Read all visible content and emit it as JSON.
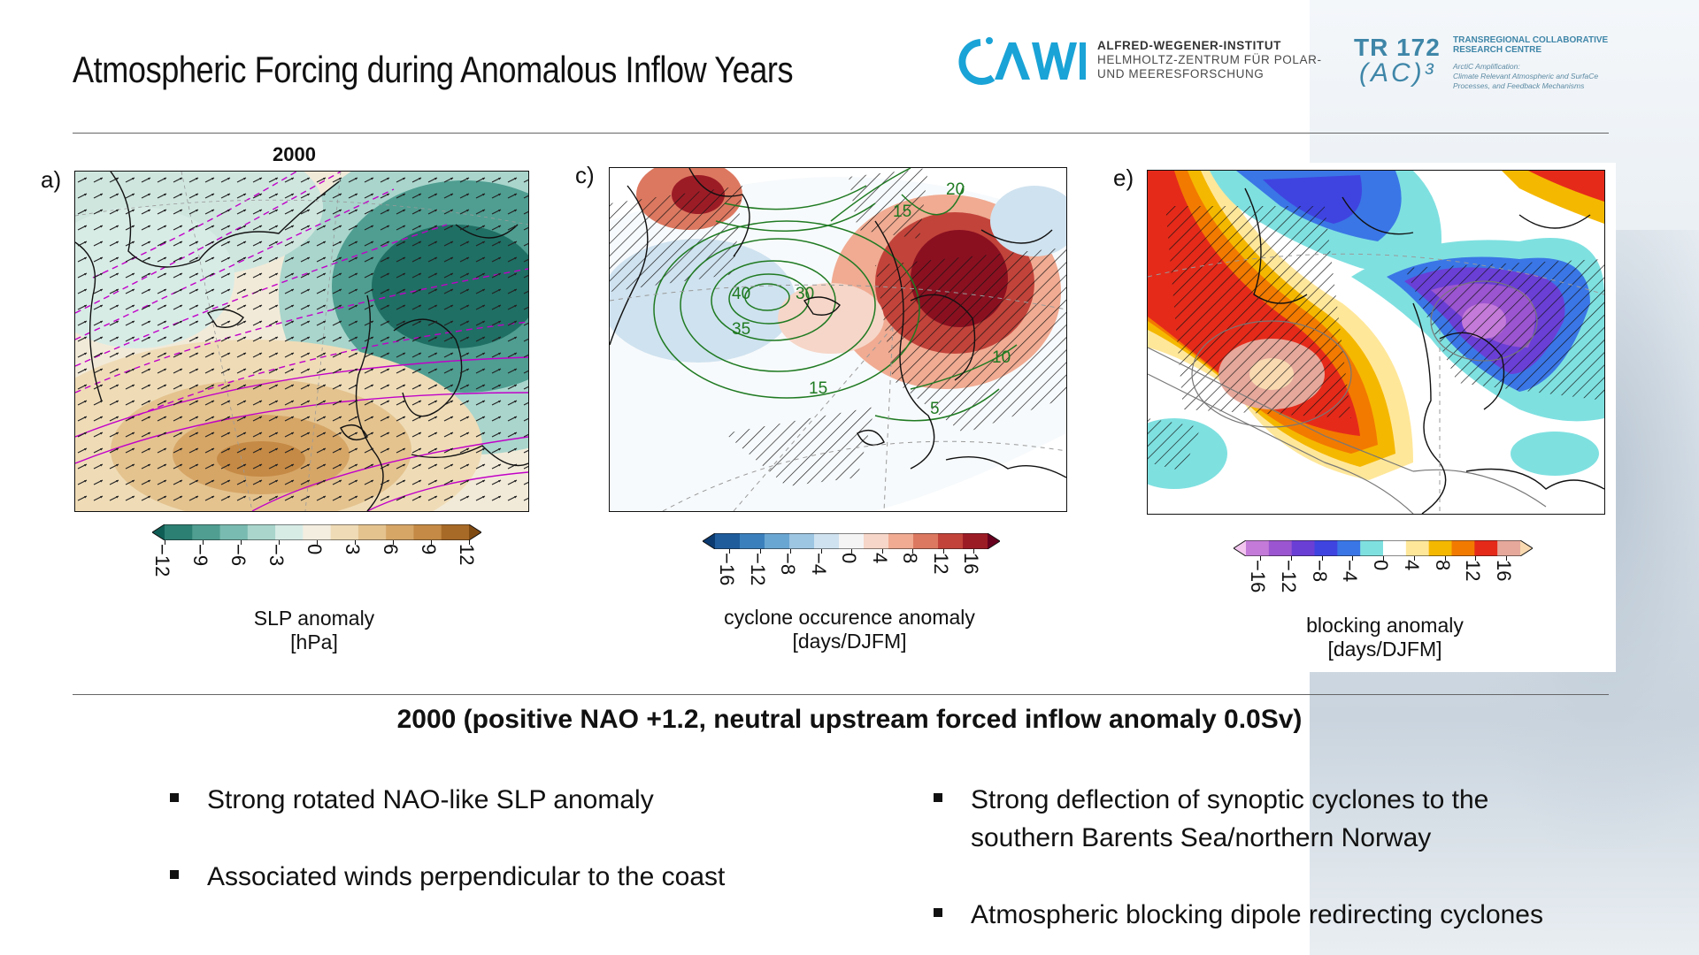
{
  "title": "Atmospheric Forcing during Anomalous Inflow Years",
  "logos": {
    "awi": {
      "mark": "AWI",
      "line1": "ALFRED-WEGENER-INSTITUT",
      "line2": "HELMHOLTZ-ZENTRUM FÜR POLAR-",
      "line3": "UND MEERESFORSCHUNG"
    },
    "tr172": {
      "mark": "TR 172",
      "ac": "(AC)³",
      "line1": "TRANSREGIONAL COLLABORATIVE",
      "line2": "RESEARCH CENTRE",
      "sub1": "ArctiC Amplification:",
      "sub2": "Climate Relevant Atmospheric and SurfaCe",
      "sub3": "Processes, and Feedback Mechanisms"
    }
  },
  "panels": {
    "a": {
      "label": "a)",
      "year": "2000",
      "colorbar": {
        "ticks": [
          "−12",
          "−9",
          "−6",
          "−3",
          "0",
          "3",
          "6",
          "9",
          "12"
        ],
        "label_line1": "SLP anomaly",
        "label_line2": "[hPa]",
        "colors": [
          "#0f5e55",
          "#2c7f73",
          "#4f9e91",
          "#79bbb0",
          "#a9d5cc",
          "#d8ece6",
          "#f4eee0",
          "#efdcb7",
          "#e4c38f",
          "#d6a667",
          "#c58a45",
          "#a86a27",
          "#7f4a12"
        ]
      }
    },
    "c": {
      "label": "c)",
      "contour_labels": [
        "40",
        "35",
        "30",
        "15",
        "20",
        "15",
        "10",
        "5"
      ],
      "colorbar": {
        "ticks": [
          "−16",
          "−12",
          "−8",
          "−4",
          "0",
          "4",
          "8",
          "12",
          "16"
        ],
        "label_line1": "cyclone occurence anomaly",
        "label_line2": "[days/DJFM]",
        "colors": [
          "#0a3a70",
          "#1f5c9c",
          "#3b80bd",
          "#6aa6d2",
          "#9dc6e3",
          "#cfe2ef",
          "#f4f4f4",
          "#f6d6c8",
          "#f0ab92",
          "#dc7860",
          "#c2433a",
          "#9c1c26",
          "#67001f"
        ]
      }
    },
    "e": {
      "label": "e)",
      "colorbar": {
        "ticks": [
          "−16",
          "−12",
          "−8",
          "−4",
          "0",
          "4",
          "8",
          "12",
          "16"
        ],
        "label_line1": "blocking anomaly",
        "label_line2": "[days/DJFM]",
        "colors": [
          "#f2c6ef",
          "#c37ad8",
          "#9b55d0",
          "#6a3fd6",
          "#3f44e0",
          "#3a76e6",
          "#7fe0e0",
          "#ffffff",
          "#ffe79a",
          "#f5b800",
          "#f27a00",
          "#e52a1a",
          "#e5a89b",
          "#f8d9b0"
        ]
      }
    }
  },
  "subtitle": "2000 (positive NAO +1.2, neutral upstream forced inflow anomaly 0.0Sv)",
  "bullets": {
    "left": [
      "Strong rotated NAO-like SLP anomaly",
      "Associated winds perpendicular to the coast"
    ],
    "right": [
      {
        "line1": "Strong deflection of synoptic cyclones to the",
        "line2": "southern Barents Sea/northern Norway"
      },
      {
        "line1": "Atmospheric blocking dipole redirecting cyclones",
        "line2": ""
      }
    ]
  }
}
